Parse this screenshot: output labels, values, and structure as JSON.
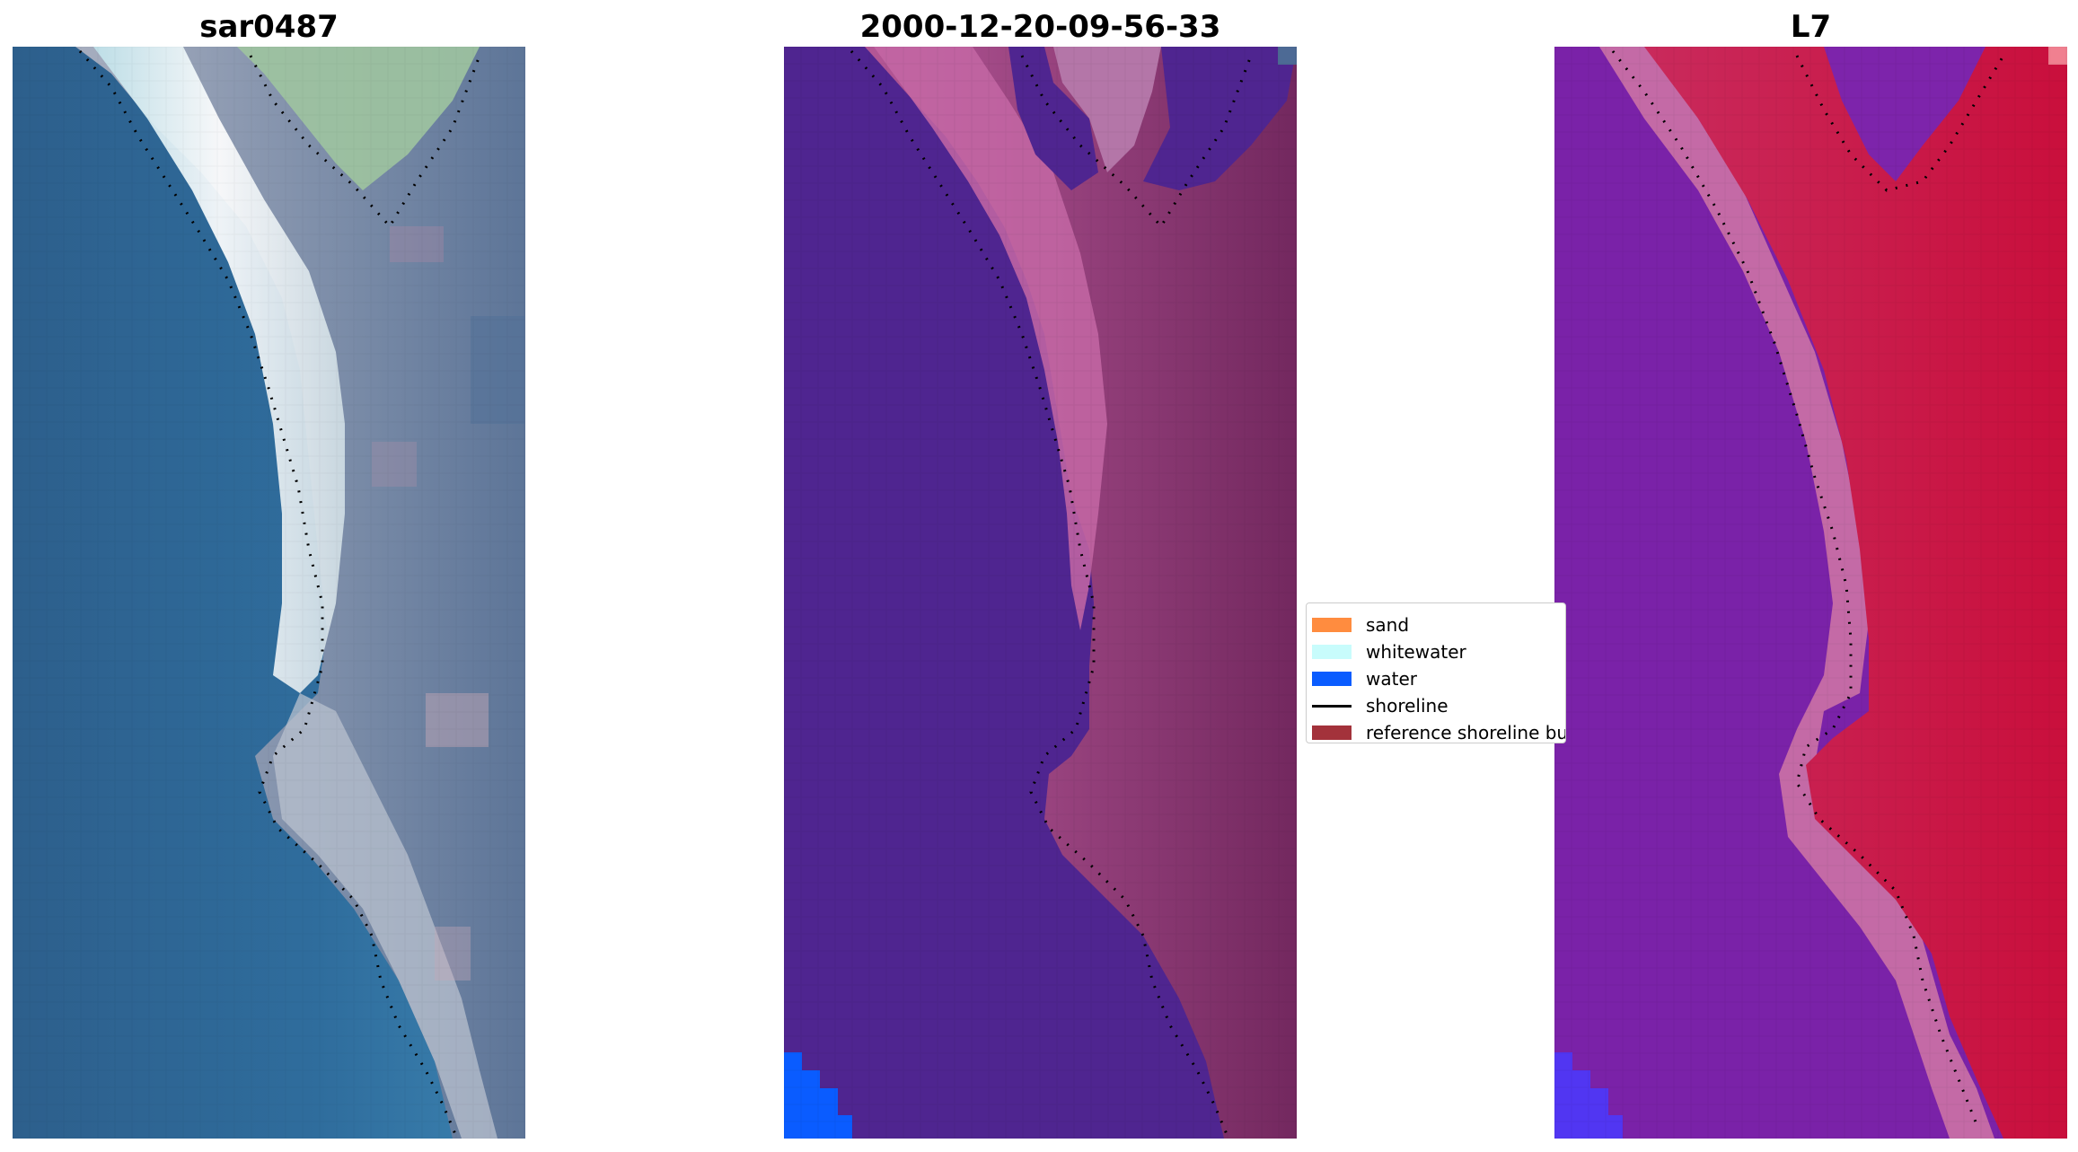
{
  "panels": [
    {
      "id": "rgb",
      "title": "sar0487"
    },
    {
      "id": "classified",
      "title": "2000-12-20-09-56-33"
    },
    {
      "id": "index",
      "title": "L7"
    }
  ],
  "legend": {
    "items": [
      {
        "label": "sand",
        "kind": "patch",
        "color": "#ff8c3f"
      },
      {
        "label": "whitewater",
        "kind": "patch",
        "color": "#c8fcfc"
      },
      {
        "label": "water",
        "kind": "patch",
        "color": "#0a5cff"
      },
      {
        "label": "shoreline",
        "kind": "line",
        "color": "#000000"
      },
      {
        "label": "reference shoreline buffer",
        "kind": "patch",
        "color": "#a3323b"
      }
    ]
  },
  "colors": {
    "ocean_rgb": "#2f6a9a",
    "surf_white": "#f2f7f8",
    "land_rgb": "#8e9ab0",
    "vegetation_green": "#9ec3a0",
    "classified_water": "#4f2590",
    "classified_land": "#8c3870",
    "classified_beach": "#c467a4",
    "index_water": "#7a20a8",
    "index_land": "#cf1f4e",
    "index_shore": "#c46aa6",
    "bright_water": "#0a5cff"
  }
}
